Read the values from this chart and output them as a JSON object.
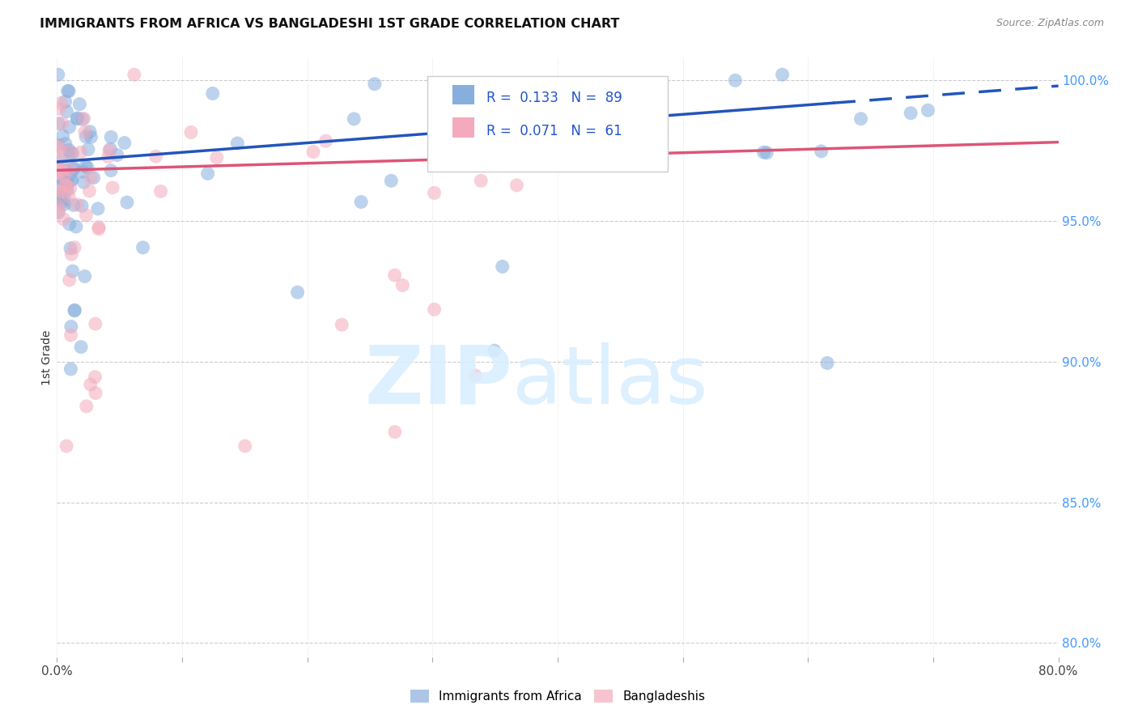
{
  "title": "IMMIGRANTS FROM AFRICA VS BANGLADESHI 1ST GRADE CORRELATION CHART",
  "source": "Source: ZipAtlas.com",
  "ylabel": "1st Grade",
  "xlim": [
    0.0,
    0.8
  ],
  "ylim": [
    0.795,
    1.008
  ],
  "xticks": [
    0.0,
    0.1,
    0.2,
    0.3,
    0.4,
    0.5,
    0.6,
    0.7,
    0.8
  ],
  "xticklabels": [
    "0.0%",
    "",
    "",
    "",
    "",
    "",
    "",
    "",
    "80.0%"
  ],
  "yticks_right": [
    1.0,
    0.95,
    0.9,
    0.85,
    0.8
  ],
  "yticklabels_right": [
    "100.0%",
    "95.0%",
    "90.0%",
    "85.0%",
    "80.0%"
  ],
  "blue_color": "#88AEDD",
  "pink_color": "#F4AABC",
  "blue_line_color": "#2255BB",
  "pink_line_color": "#DD5577",
  "legend_R_blue": "0.133",
  "legend_N_blue": "89",
  "legend_R_pink": "0.071",
  "legend_N_pink": "61",
  "blue_line_x0": 0.0,
  "blue_line_y0": 0.971,
  "blue_line_x1": 0.8,
  "blue_line_y1": 0.998,
  "blue_dash_split": 0.62,
  "pink_line_x0": 0.0,
  "pink_line_y0": 0.968,
  "pink_line_x1": 0.8,
  "pink_line_y1": 0.978
}
